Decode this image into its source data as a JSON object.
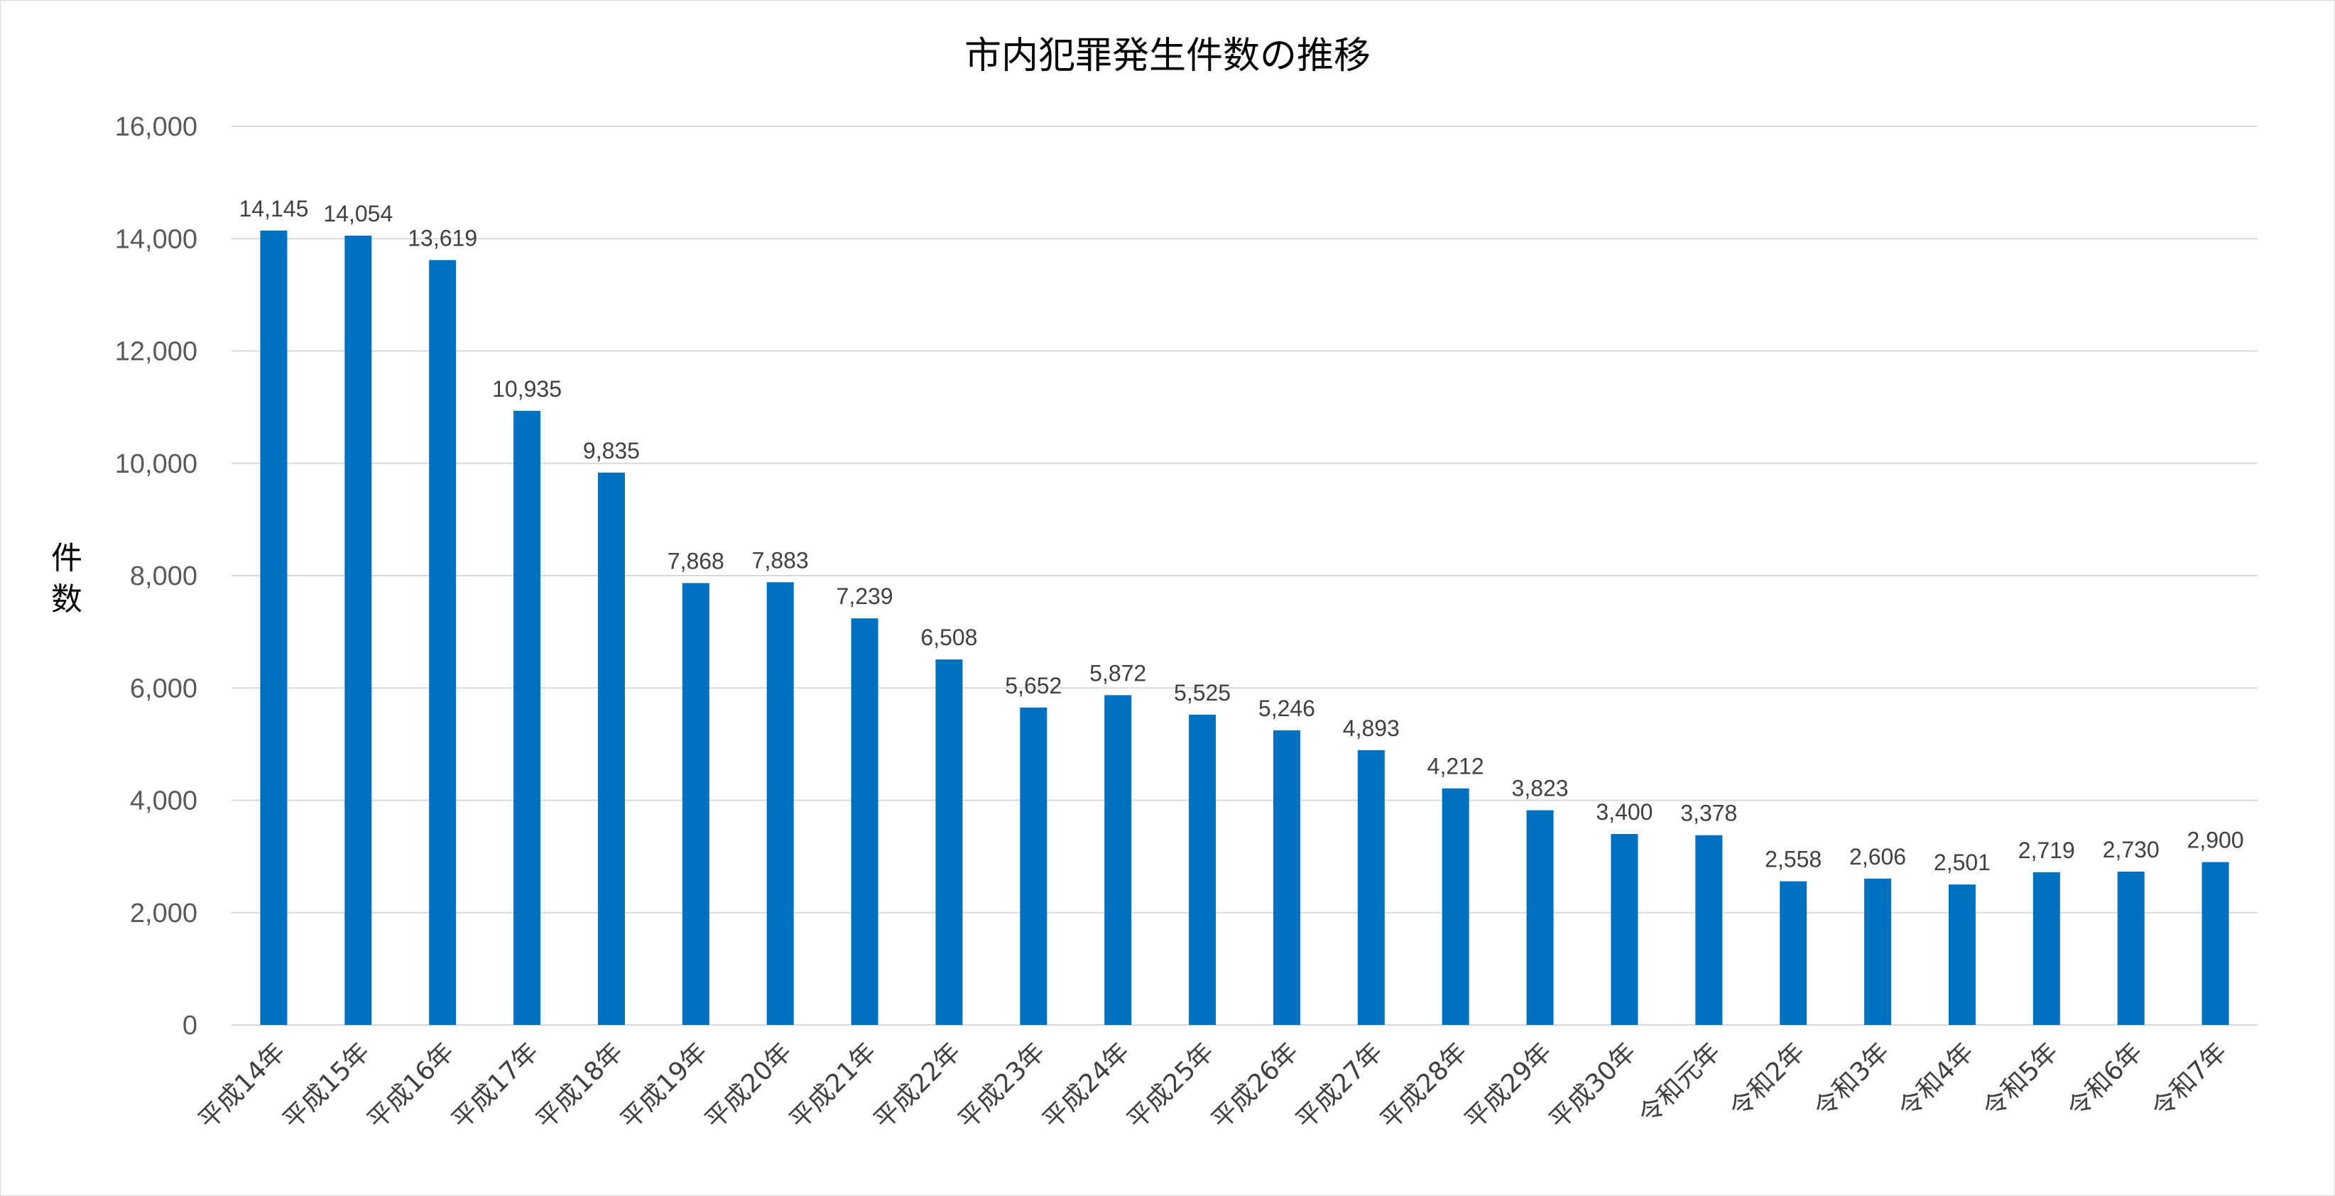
{
  "chart_data": {
    "type": "bar",
    "title": "市内犯罪発生件数の推移",
    "xlabel": "",
    "ylabel": "件数",
    "ylim": [
      0,
      16000
    ],
    "y_ticks": [
      0,
      2000,
      4000,
      6000,
      8000,
      10000,
      12000,
      14000,
      16000
    ],
    "y_tick_labels": [
      "0",
      "2,000",
      "4,000",
      "6,000",
      "8,000",
      "10,000",
      "12,000",
      "14,000",
      "16,000"
    ],
    "grid": true,
    "legend": "none",
    "bar_color": "#0070C0",
    "categories": [
      "平成14年",
      "平成15年",
      "平成16年",
      "平成17年",
      "平成18年",
      "平成19年",
      "平成20年",
      "平成21年",
      "平成22年",
      "平成23年",
      "平成24年",
      "平成25年",
      "平成26年",
      "平成27年",
      "平成28年",
      "平成29年",
      "平成30年",
      "令和元年",
      "令和2年",
      "令和3年",
      "令和4年",
      "令和5年",
      "令和6年",
      "令和7年"
    ],
    "values": [
      14145,
      14054,
      13619,
      10935,
      9835,
      7868,
      7883,
      7239,
      6508,
      5652,
      5872,
      5525,
      5246,
      4893,
      4212,
      3823,
      3400,
      3378,
      2558,
      2606,
      2501,
      2719,
      2730,
      2900
    ],
    "data_labels": [
      "14,145",
      "14,054",
      "13,619",
      "10,935",
      "9,835",
      "7,868",
      "7,883",
      "7,239",
      "6,508",
      "5,652",
      "5,872",
      "5,525",
      "5,246",
      "4,893",
      "4,212",
      "3,823",
      "3,400",
      "3,378",
      "2,558",
      "2,606",
      "2,501",
      "2,719",
      "2,730",
      "2,900"
    ]
  }
}
